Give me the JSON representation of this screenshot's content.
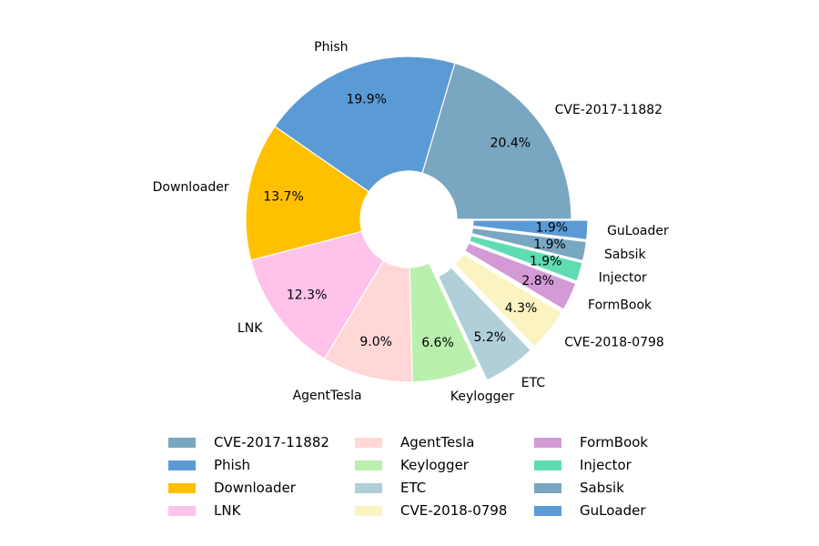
{
  "chart_data": {
    "type": "pie",
    "donut": true,
    "title": "",
    "start_angle_deg": 0,
    "direction": "counterclockwise",
    "categories": [
      "CVE-2017-11882",
      "Phish",
      "Downloader",
      "LNK",
      "AgentTesla",
      "Keylogger",
      "ETC",
      "CVE-2018-0798",
      "FormBook",
      "Injector",
      "Sabsik",
      "GuLoader"
    ],
    "values": [
      20.4,
      19.9,
      13.7,
      12.3,
      9.0,
      6.6,
      5.2,
      4.3,
      2.8,
      1.9,
      1.9,
      1.9
    ],
    "value_labels": [
      "20.4%",
      "19.9%",
      "13.7%",
      "12.3%",
      "9.0%",
      "6.6%",
      "5.2%",
      "4.3%",
      "2.8%",
      "1.9%",
      "1.9%",
      "1.9%"
    ],
    "colors": [
      "#79a6c0",
      "#5b9bd5",
      "#ffc000",
      "#ffc2ea",
      "#ffd7d7",
      "#b9f0ae",
      "#b0cfd8",
      "#fbf3c2",
      "#d39ad6",
      "#5fdcb4",
      "#79a6c0",
      "#5b9bd5"
    ],
    "exploded": [
      "ETC",
      "CVE-2018-0798",
      "FormBook",
      "Injector",
      "Sabsik",
      "GuLoader"
    ],
    "legend": {
      "placement": "bottom",
      "columns": 3,
      "entries": [
        "CVE-2017-11882",
        "Phish",
        "Downloader",
        "LNK",
        "AgentTesla",
        "Keylogger",
        "ETC",
        "CVE-2018-0798",
        "FormBook",
        "Injector",
        "Sabsik",
        "GuLoader"
      ]
    }
  }
}
